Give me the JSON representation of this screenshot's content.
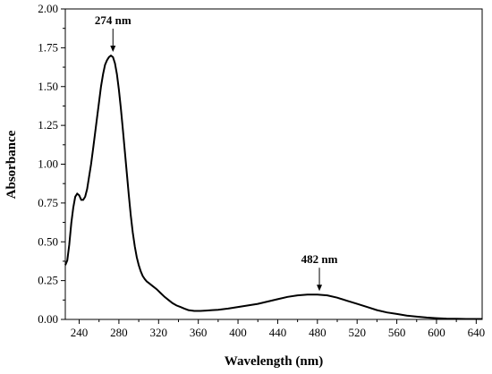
{
  "chart_data": {
    "type": "line",
    "xlabel": "Wavelength (nm)",
    "ylabel": "Absorbance",
    "xlim": [
      226,
      646
    ],
    "ylim": [
      0,
      2.0
    ],
    "xticks": [
      240,
      280,
      320,
      360,
      400,
      440,
      480,
      520,
      560,
      600,
      640
    ],
    "xtick_labels": [
      "240",
      "280",
      "320",
      "360",
      "400",
      "440",
      "480",
      "520",
      "560",
      "600",
      "640"
    ],
    "yticks": [
      0,
      0.25,
      0.5,
      0.75,
      1.0,
      1.25,
      1.5,
      1.75,
      2.0
    ],
    "ytick_labels": [
      "0.00",
      "0.25",
      "0.50",
      "0.75",
      "1.00",
      "1.25",
      "1.50",
      "1.75",
      "2.00"
    ],
    "grid": false,
    "legend": "none",
    "line_color": "#000000",
    "series": [
      {
        "x": [
          226,
          228,
          230,
          232,
          234,
          236,
          238,
          240,
          242,
          244,
          246,
          248,
          250,
          252,
          254,
          256,
          258,
          260,
          262,
          264,
          266,
          268,
          270,
          272,
          274,
          276,
          278,
          280,
          282,
          284,
          286,
          288,
          290,
          292,
          294,
          296,
          298,
          300,
          302,
          304,
          306,
          308,
          310,
          314,
          318,
          322,
          326,
          330,
          334,
          338,
          342,
          346,
          350,
          356,
          362,
          368,
          374,
          380,
          390,
          400,
          410,
          420,
          430,
          440,
          450,
          460,
          470,
          480,
          490,
          500,
          510,
          520,
          530,
          540,
          550,
          560,
          570,
          580,
          590,
          600,
          610,
          620,
          630,
          640,
          646
        ],
        "y": [
          0.35,
          0.38,
          0.48,
          0.62,
          0.72,
          0.79,
          0.81,
          0.8,
          0.77,
          0.77,
          0.79,
          0.84,
          0.92,
          1.0,
          1.1,
          1.2,
          1.3,
          1.4,
          1.5,
          1.58,
          1.64,
          1.67,
          1.69,
          1.7,
          1.69,
          1.65,
          1.58,
          1.48,
          1.36,
          1.22,
          1.08,
          0.94,
          0.8,
          0.67,
          0.56,
          0.47,
          0.4,
          0.35,
          0.31,
          0.28,
          0.26,
          0.245,
          0.235,
          0.215,
          0.195,
          0.17,
          0.145,
          0.125,
          0.105,
          0.09,
          0.08,
          0.07,
          0.06,
          0.055,
          0.055,
          0.057,
          0.06,
          0.062,
          0.07,
          0.08,
          0.09,
          0.1,
          0.115,
          0.13,
          0.145,
          0.155,
          0.16,
          0.16,
          0.155,
          0.14,
          0.12,
          0.1,
          0.08,
          0.06,
          0.045,
          0.035,
          0.025,
          0.018,
          0.012,
          0.008,
          0.005,
          0.004,
          0.003,
          0.003,
          0.003
        ]
      }
    ],
    "annotations": [
      {
        "text": "274 nm",
        "x": 274,
        "y": 1.7
      },
      {
        "text": "482 nm",
        "x": 482,
        "y": 0.16
      }
    ]
  }
}
